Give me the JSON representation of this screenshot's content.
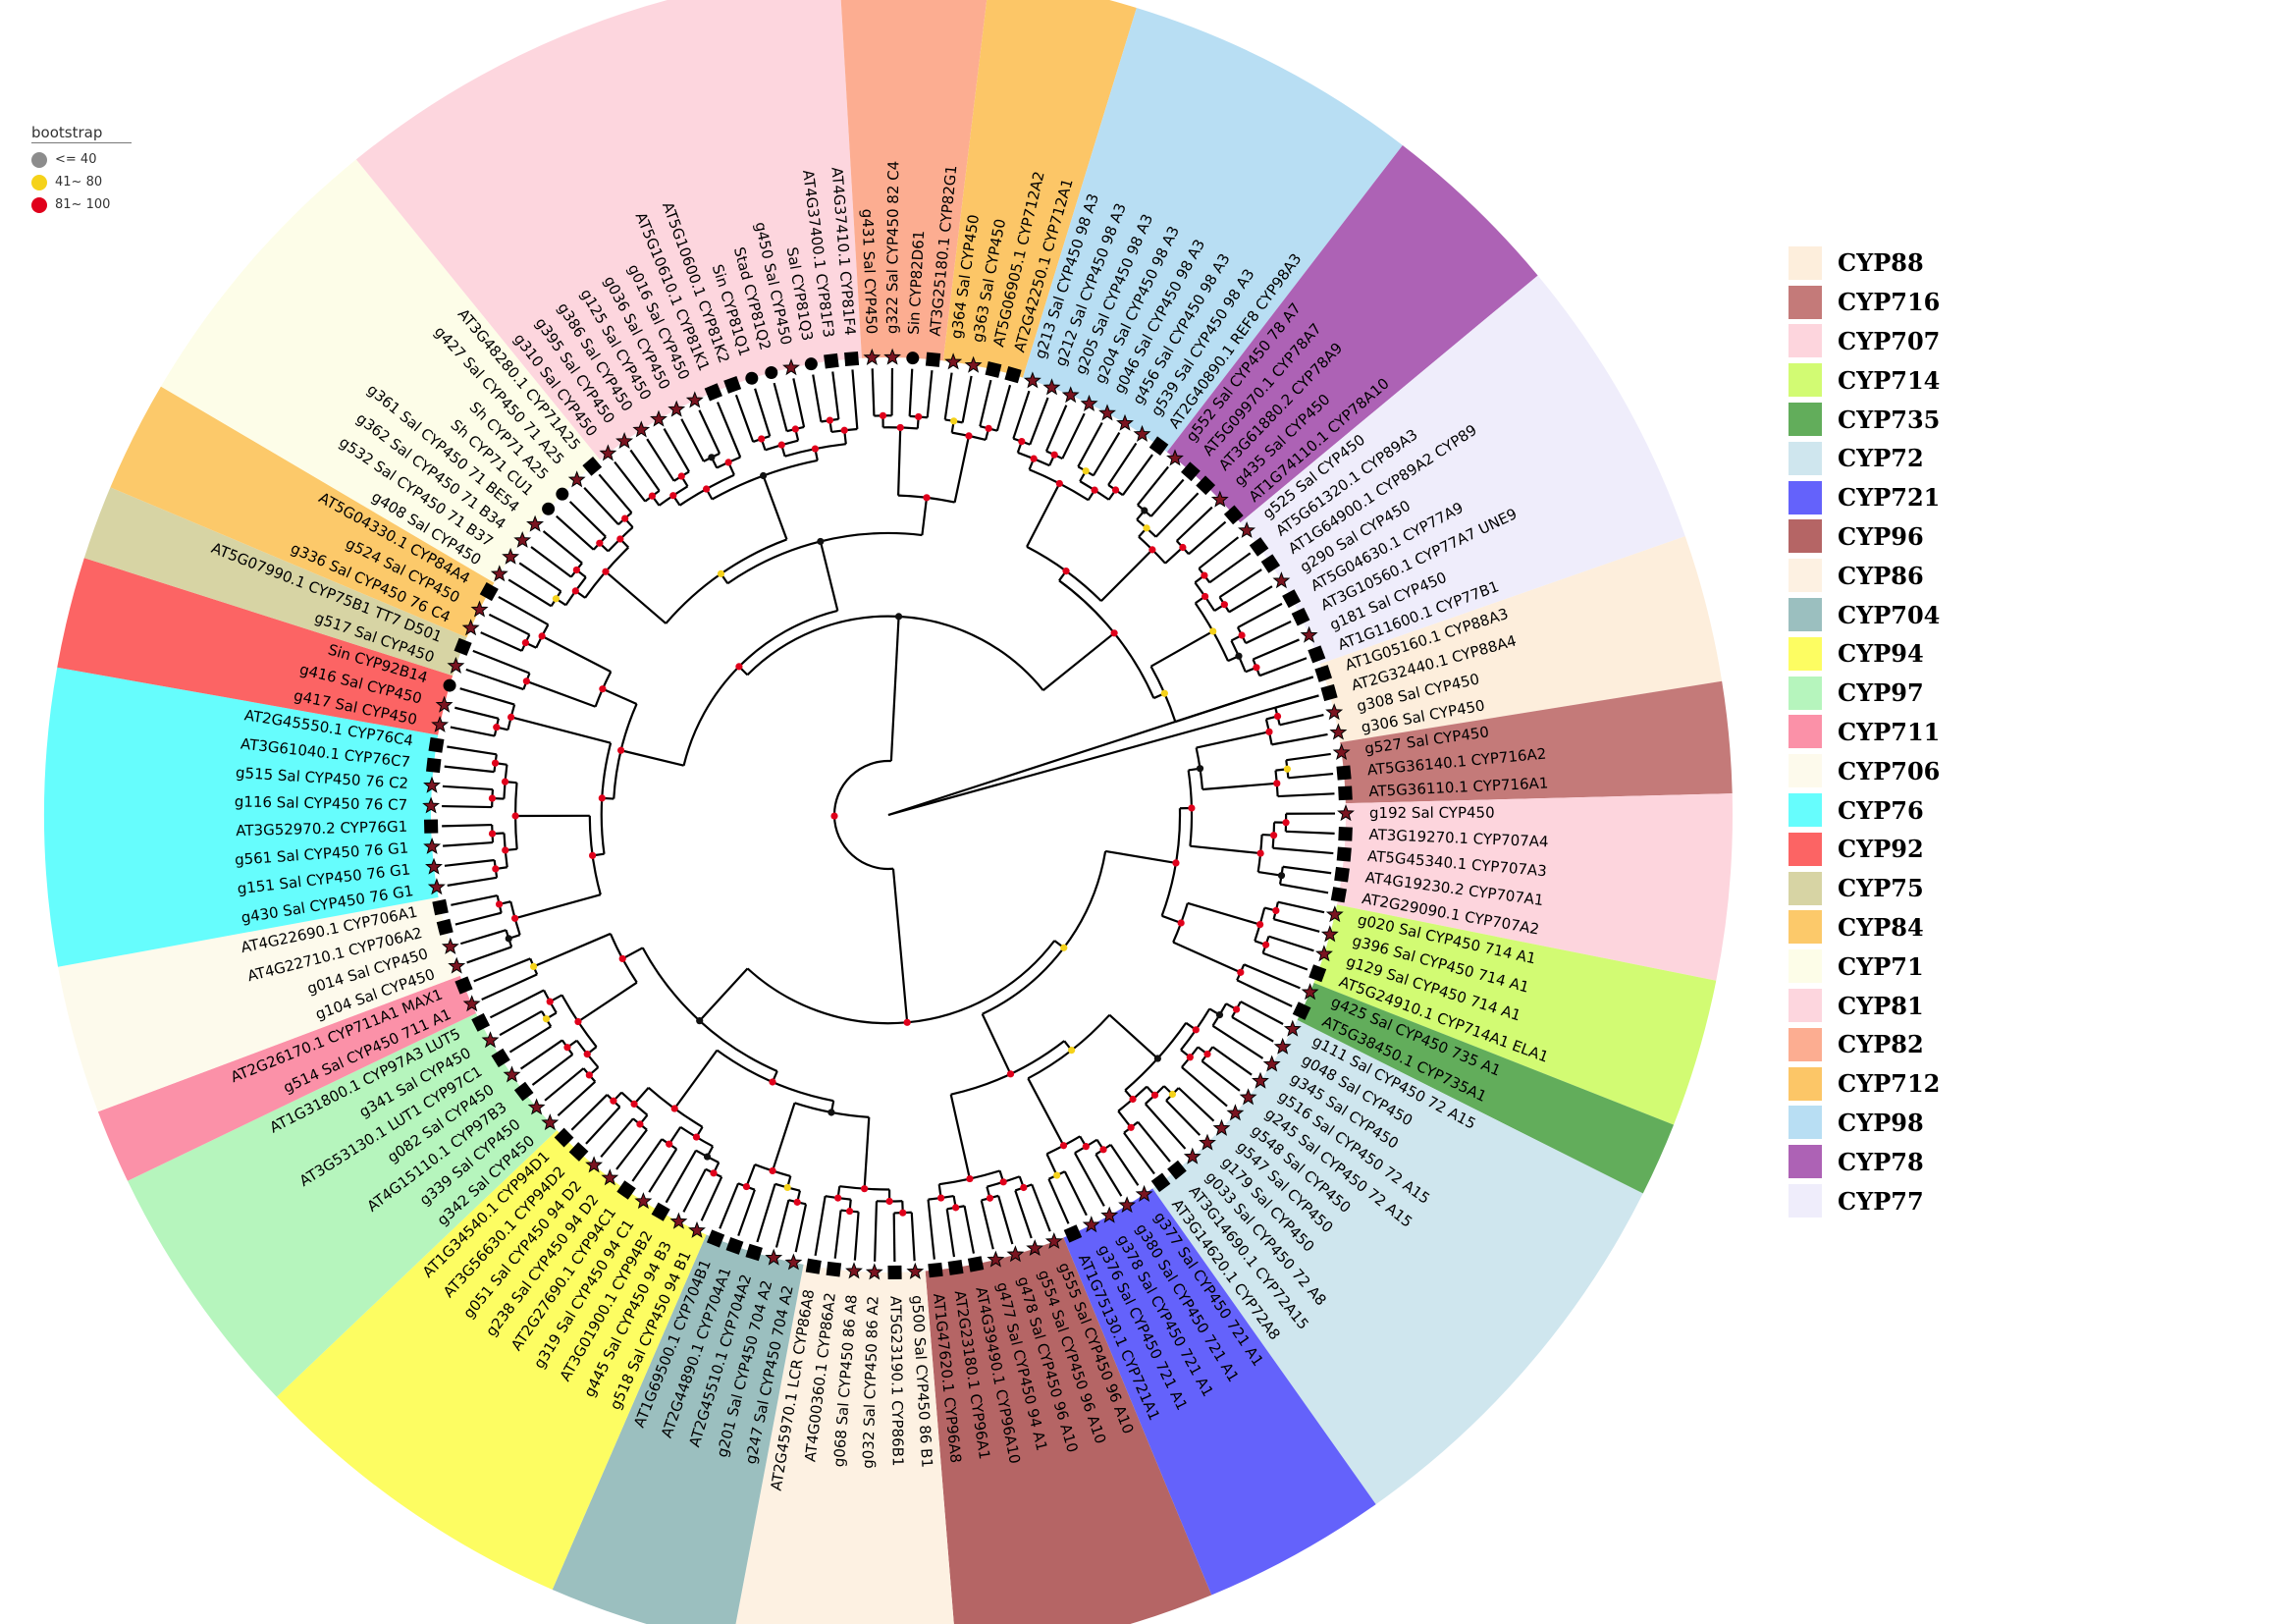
{
  "bootstrap_legend": {
    "title": "bootstrap",
    "items": [
      {
        "label": "<= 40",
        "color": "#8c8c8c"
      },
      {
        "label": "41~ 80",
        "color": "#f5d21a"
      },
      {
        "label": "81~ 100",
        "color": "#e0001b"
      }
    ]
  },
  "family_legend": [
    {
      "label": "CYP88",
      "color": "#fdeedc"
    },
    {
      "label": "CYP716",
      "color": "#c47a79"
    },
    {
      "label": "CYP707",
      "color": "#fdd5dd"
    },
    {
      "label": "CYP714",
      "color": "#d2fb73"
    },
    {
      "label": "CYP735",
      "color": "#62ad5b"
    },
    {
      "label": "CYP72",
      "color": "#cfe6ee"
    },
    {
      "label": "CYP721",
      "color": "#6462fb"
    },
    {
      "label": "CYP96",
      "color": "#b56565"
    },
    {
      "label": "CYP86",
      "color": "#fdf1e2"
    },
    {
      "label": "CYP704",
      "color": "#9bbfbf"
    },
    {
      "label": "CYP94",
      "color": "#fdfd62"
    },
    {
      "label": "CYP97",
      "color": "#b6f5bd"
    },
    {
      "label": "CYP711",
      "color": "#fb91a8"
    },
    {
      "label": "CYP706",
      "color": "#fdfaec"
    },
    {
      "label": "CYP76",
      "color": "#66fdfd"
    },
    {
      "label": "CYP92",
      "color": "#fc6464"
    },
    {
      "label": "CYP75",
      "color": "#d7d4a4"
    },
    {
      "label": "CYP84",
      "color": "#fcc96a"
    },
    {
      "label": "CYP71",
      "color": "#fdfde8"
    },
    {
      "label": "CYP81",
      "color": "#fdd6de"
    },
    {
      "label": "CYP82",
      "color": "#fcad91"
    },
    {
      "label": "CYP712",
      "color": "#fcc667"
    },
    {
      "label": "CYP98",
      "color": "#b8def3"
    },
    {
      "label": "CYP78",
      "color": "#ad62b5"
    },
    {
      "label": "CYP77",
      "color": "#efedfb"
    }
  ],
  "tree": {
    "families": [
      {
        "name": "CYP88",
        "color": "#fdeedc",
        "tips": [
          "AT2G32440.1 CYP88A4",
          "g308 Sal CYP450",
          "g306 Sal CYP450"
        ]
      },
      {
        "name": "CYP716",
        "color": "#c47a79",
        "tips": [
          "g527 Sal CYP450",
          "AT5G36140.1 CYP716A2",
          "AT5G36110.1 CYP716A1"
        ]
      },
      {
        "name": "CYP707",
        "color": "#fdd5dd",
        "tips": [
          "g192 Sal CYP450",
          "AT3G19270.1 CYP707A4",
          "AT5G45340.1 CYP707A3",
          "AT4G19230.2 CYP707A1",
          "AT2G29090.1 CYP707A2"
        ]
      },
      {
        "name": "CYP714",
        "color": "#d2fb73",
        "tips": [
          "g020 Sal CYP450 714 A1",
          "g396 Sal CYP450 714 A1",
          "g129 Sal CYP450 714 A1",
          "AT5G24910.1 CYP714A1 ELA1"
        ]
      },
      {
        "name": "CYP735",
        "color": "#62ad5b",
        "tips": [
          "g425 Sal CYP450 735 A1",
          "AT5G38450.1 CYP735A1"
        ]
      },
      {
        "name": "CYP72",
        "color": "#cfe6ee",
        "tips": [
          "g111 Sal CYP450 72 A15",
          "g048 Sal CYP450",
          "g345 Sal CYP450",
          "g516 Sal CYP450 72 A15",
          "g245 Sal CYP450 72 A15",
          "g548 Sal CYP450",
          "g547 Sal CYP450",
          "g179 Sal CYP450",
          "g033 Sal CYP450 72 A8",
          "AT3G14690.1 CYP72A15",
          "AT3G14620.1 CYP72A8"
        ]
      },
      {
        "name": "CYP721",
        "color": "#6462fb",
        "tips": [
          "g377 Sal CYP450 721 A1",
          "g380 Sal CYP450 721 A1",
          "g378 Sal CYP450 721 A1",
          "g376 Sal CYP450 721 A1",
          "AT1G75130.1 CYP721A1"
        ]
      },
      {
        "name": "CYP96",
        "color": "#b56565",
        "tips": [
          "g555 Sal CYP450 96 A10",
          "g554 Sal CYP450 96 A10",
          "g478 Sal CYP450 96 A10",
          "g477 Sal CYP450 94 A1",
          "AT4G39490.1 CYP96A10",
          "AT2G23180.1 CYP96A1",
          "AT1G47620.1 CYP96A8"
        ]
      },
      {
        "name": "CYP86",
        "color": "#fdf1e2",
        "tips": [
          "g500 Sal CYP450 86 B1",
          "AT5G23190.1 CYP86B1",
          "g032 Sal CYP450 86 A2",
          "g068 Sal CYP450 86 A8",
          "AT4G00360.1 CYP86A2",
          "AT2G45970.1 LCR CYP86A8"
        ]
      },
      {
        "name": "CYP704",
        "color": "#9bbfbf",
        "tips": [
          "g247 Sal CYP450 704 A2",
          "g201 Sal CYP450 704 A2",
          "AT2G45510.1 CYP704A2",
          "AT2G44890.1 CYP704A1",
          "AT1G69500.1 CYP704B1"
        ]
      },
      {
        "name": "CYP94",
        "color": "#fdfd62",
        "tips": [
          "g518 Sal CYP450 94 B1",
          "g445 Sal CYP450 94 B3",
          "AT3G01900.1 CYP94B2",
          "g319 Sal CYP450 94 C1",
          "AT2G27690.1 CYP94C1",
          "g238 Sal CYP450 94 D2",
          "g051 Sal CYP450 94 D2",
          "AT3G56630.1 CYP94D2",
          "AT1G34540.1 CYP94D1"
        ]
      },
      {
        "name": "CYP97",
        "color": "#b6f5bd",
        "tips": [
          "g342 Sal CYP450",
          "g339 Sal CYP450",
          "AT4G15110.1 CYP97B3",
          "g082 Sal CYP450",
          "AT3G53130.1 LUT1 CYP97C1",
          "g341 Sal CYP450",
          "AT1G31800.1 CYP97A3 LUT5"
        ]
      },
      {
        "name": "CYP711",
        "color": "#fb91a8",
        "tips": [
          "g514 Sal CYP450 711 A1",
          "AT2G26170.1 CYP711A1 MAX1"
        ]
      },
      {
        "name": "CYP706",
        "color": "#fdfaec",
        "tips": [
          "g104 Sal CYP450",
          "g014 Sal CYP450",
          "AT4G22710.1 CYP706A2",
          "AT4G22690.1 CYP706A1"
        ]
      },
      {
        "name": "CYP76",
        "color": "#66fdfd",
        "tips": [
          "g430 Sal CYP450 76 G1",
          "g151 Sal CYP450 76 G1",
          "g561 Sal CYP450 76 G1",
          "AT3G52970.2 CYP76G1",
          "g116 Sal CYP450 76 C7",
          "g515 Sal CYP450 76 C2",
          "AT3G61040.1 CYP76C7",
          "AT2G45550.1 CYP76C4"
        ]
      },
      {
        "name": "CYP92",
        "color": "#fc6464",
        "tips": [
          "g417 Sal CYP450",
          "g416 Sal CYP450",
          "Sin CYP92B14"
        ]
      },
      {
        "name": "CYP75",
        "color": "#d7d4a4",
        "tips": [
          "g517 Sal CYP450",
          "AT5G07990.1 CYP75B1 TT7 D501"
        ]
      },
      {
        "name": "CYP84",
        "color": "#fcc96a",
        "tips": [
          "g336 Sal CYP450 76 C4",
          "g524 Sal CYP450",
          "AT5G04330.1 CYP84A4"
        ]
      },
      {
        "name": "CYP71",
        "color": "#fdfde8",
        "tips": [
          "g408 Sal CYP450",
          "g532 Sal CYP450 71 B37",
          "g362 Sal CYP450 71 B34",
          "g361 Sal CYP450 71 BE54",
          "Sh CYP71 CU1",
          "Sh CYP71 A25",
          "g427 Sal CYP450 71 A25",
          "AT3G48280.1 CYP71A25"
        ]
      },
      {
        "name": "CYP81",
        "color": "#fdd6de",
        "tips": [
          "g310 Sal CYP450",
          "g395 Sal CYP450",
          "g386 Sal CYP450",
          "g125 Sal CYP450",
          "g036 Sal CYP450",
          "g016 Sal CYP450",
          "AT5G10610.1 CYP81K1",
          "AT5G10600.1 CYP81K2",
          "Sin CYP81Q1",
          "Stad CYP81Q2",
          "g450 Sal CYP450",
          "Sal CYP81Q3",
          "AT4G37400.1 CYP81F3",
          "AT4G37410.1 CYP81F4"
        ]
      },
      {
        "name": "CYP82",
        "color": "#fcad91",
        "tips": [
          "g431 Sal CYP450",
          "g322 Sal CYP450 82 C4",
          "Sin CYP82D61",
          "AT3G25180.1 CYP82G1"
        ]
      },
      {
        "name": "CYP712",
        "color": "#fcc667",
        "tips": [
          "g364 Sal CYP450",
          "g363 Sal CYP450",
          "AT5G06905.1 CYP712A2",
          "AT2G42250.1 CYP712A1"
        ]
      },
      {
        "name": "CYP98",
        "color": "#b8def3",
        "tips": [
          "g213 Sal CYP450 98 A3",
          "g212 Sal CYP450 98 A3",
          "g205 Sal CYP450 98 A3",
          "g204 Sal CYP450 98 A3",
          "g046 Sal CYP450 98 A3",
          "g456 Sal CYP450 98 A3",
          "g539 Sal CYP450 98 A3",
          "AT2G40890.1 REF8 CYP98A3"
        ]
      },
      {
        "name": "CYP78",
        "color": "#ad62b5",
        "tips": [
          "g552 Sal CYP450 78 A7",
          "AT5G09970.1 CYP78A7",
          "AT3G61880.2 CYP78A9",
          "g435 Sal CYP450",
          "AT1G74110.1 CYP78A10"
        ]
      },
      {
        "name": "CYP77",
        "color": "#efedfb",
        "tips": [
          "g525 Sal CYP450",
          "AT5G61320.1 CYP89A3",
          "AT1G64900.1 CYP89A2 CYP89",
          "g290 Sal CYP450",
          "AT5G04630.1 CYP77A9",
          "AT3G10560.1 CYP77A7 UNE9",
          "g181 Sal CYP450",
          "AT1G11600.1 CYP77B1"
        ]
      },
      {
        "name": "CYP88",
        "color": "#fdeedc",
        "tips": [
          "AT1G05160.1 CYP88A3"
        ]
      }
    ]
  }
}
